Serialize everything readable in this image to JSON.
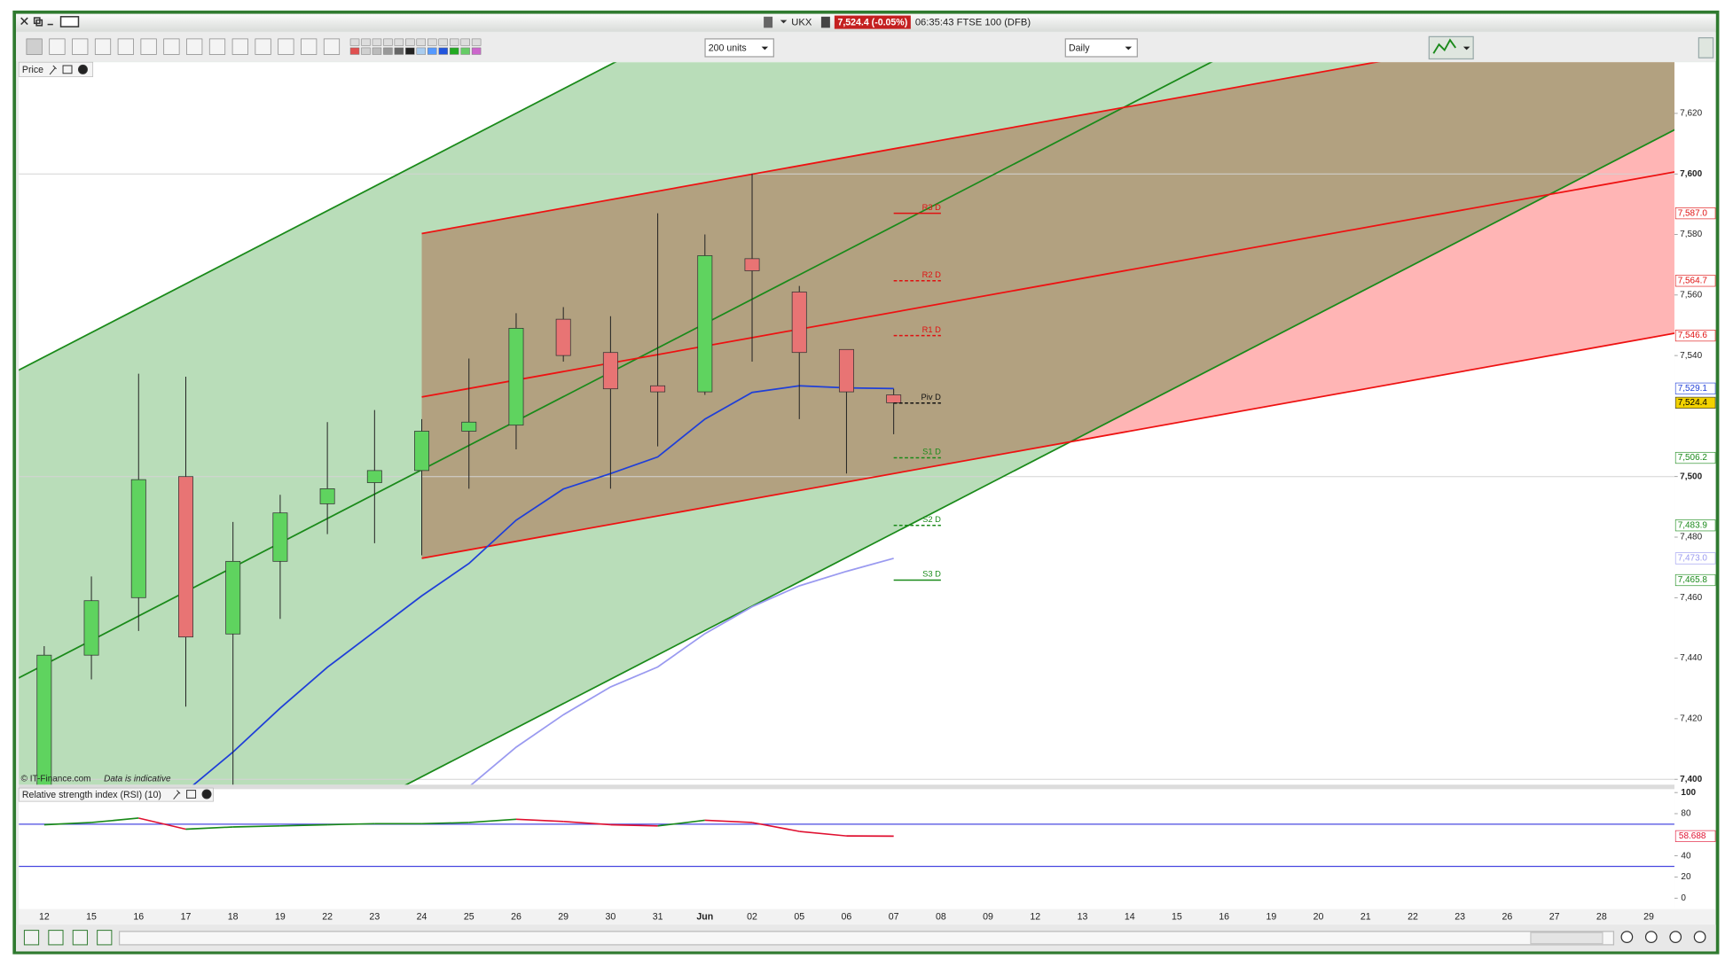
{
  "window": {
    "title": "UKX",
    "price": "7,524.4 (-0.05%)",
    "status": "06:35:43 FTSE 100 (DFB)"
  },
  "toolbar": {
    "size": "200 units",
    "interval": "Daily"
  },
  "chart_data": [
    {
      "type": "candlestick",
      "title": "Price",
      "footnote": "© IT-Finance.com",
      "note": "Data is indicative",
      "categories": [
        "12",
        "15",
        "16",
        "17",
        "18",
        "19",
        "22",
        "23",
        "24",
        "25",
        "26",
        "29",
        "30",
        "31",
        "Jun",
        "02",
        "05",
        "06",
        "07",
        "08",
        "09",
        "12",
        "13",
        "14",
        "15",
        "16",
        "19",
        "20",
        "21",
        "22",
        "23",
        "26",
        "27",
        "28",
        "29"
      ],
      "open": [
        7396,
        7441,
        7460,
        7500,
        7448,
        7472,
        7491,
        7498,
        7502,
        7515,
        7517,
        7552,
        7541,
        7530,
        7528,
        7572,
        7561,
        7542,
        7527,
        null,
        null,
        null,
        null,
        null,
        null,
        null,
        null,
        null,
        null,
        null,
        null,
        null,
        null,
        null,
        null
      ],
      "high": [
        7444,
        7467,
        7534,
        7533,
        7485,
        7494,
        7518,
        7522,
        7519,
        7539,
        7554,
        7556,
        7553,
        7587,
        7580,
        7600,
        7563,
        7542,
        7529,
        null,
        null,
        null,
        null,
        null,
        null,
        null,
        null,
        null,
        null,
        null,
        null,
        null,
        null,
        null,
        null
      ],
      "low": [
        7390,
        7433,
        7449,
        7424,
        7397,
        7453,
        7481,
        7478,
        7474,
        7496,
        7509,
        7538,
        7496,
        7510,
        7527,
        7538,
        7519,
        7501,
        7514,
        null,
        null,
        null,
        null,
        null,
        null,
        null,
        null,
        null,
        null,
        null,
        null,
        null,
        null,
        null,
        null
      ],
      "close": [
        7441,
        7459,
        7499,
        7447,
        7472,
        7488,
        7496,
        7502,
        7515,
        7518,
        7549,
        7540,
        7529,
        7528,
        7573,
        7568,
        7541,
        7528,
        7524.4,
        null,
        null,
        null,
        null,
        null,
        null,
        null,
        null,
        null,
        null,
        null,
        null,
        null,
        null,
        null,
        null
      ],
      "up_color": "#5fd35f",
      "down_color": "#e87474",
      "lines": [
        {
          "color": "#1f3fd8",
          "value_label": "7,529.1",
          "values": [
            null,
            null,
            null,
            7396,
            7409,
            7423.5,
            7437,
            7448.8,
            7460.6,
            7471.3,
            7485.6,
            7495.9,
            7501,
            7506.5,
            7519,
            7527.8,
            7530,
            7529.3,
            7529.1,
            null,
            null,
            null,
            null,
            null,
            null,
            null,
            null,
            null,
            null,
            null,
            null,
            null,
            null,
            null,
            null
          ]
        },
        {
          "color": "#9a9af0",
          "value_label": "7,473.0",
          "values": [
            null,
            null,
            null,
            null,
            null,
            null,
            null,
            null,
            null,
            7397.5,
            7410.6,
            7421.3,
            7430.5,
            7437.1,
            7448.1,
            7457,
            7463.9,
            7468.7,
            7473.0,
            null,
            null,
            null,
            null,
            null,
            null,
            null,
            null,
            null,
            null,
            null,
            null,
            null,
            null,
            null,
            null
          ]
        }
      ],
      "current": {
        "value": 7524.4,
        "value_label": "7,524.4",
        "color": "#f2d200"
      },
      "levels": [
        {
          "name": "R3 D",
          "value": 7587.0,
          "value_label": "7,587.0",
          "color": "#e01010",
          "dashed": false
        },
        {
          "name": "R2 D",
          "value": 7564.7,
          "value_label": "7,564.7",
          "color": "#e01010",
          "dashed": true
        },
        {
          "name": "R1 D",
          "value": 7546.6,
          "value_label": "7,546.6",
          "color": "#e01010",
          "dashed": true
        },
        {
          "name": "Piv D",
          "value": 7524.3,
          "color": "#111111",
          "dashed": true
        },
        {
          "name": "S1 D",
          "value": 7506.2,
          "value_label": "7,506.2",
          "color": "#1a8a1a",
          "dashed": true
        },
        {
          "name": "S2 D",
          "value": 7483.9,
          "value_label": "7,483.9",
          "color": "#1a8a1a",
          "dashed": true
        },
        {
          "name": "S3 D",
          "value": 7465.8,
          "value_label": "7,465.8",
          "color": "#1a8a1a",
          "dashed": false
        }
      ],
      "channels": [
        {
          "color": "#1a8a1a",
          "fill": "#b9ddb9",
          "upper": [
            [
              -0.6,
              7534.7
            ],
            [
              34.6,
              7818.1
            ]
          ],
          "middle": [
            [
              -0.6,
              7433.0
            ],
            [
              34.6,
              7716.4
            ]
          ],
          "lower": [
            [
              -0.6,
              7331.6
            ],
            [
              34.6,
              7615.0
            ]
          ]
        },
        {
          "color": "#ee1111",
          "fill": "#ffb5b5",
          "overlap_fill": "#b2a180",
          "upper": [
            [
              8,
              7580.3
            ],
            [
              34.6,
              7654.8
            ]
          ],
          "middle": [
            [
              8,
              7526.3
            ],
            [
              34.6,
              7600.8
            ]
          ],
          "lower": [
            [
              8,
              7473.0
            ],
            [
              34.6,
              7547.5
            ]
          ]
        }
      ],
      "ylim": [
        7398.2,
        7636.9
      ],
      "yticks": [
        {
          "value": 7400,
          "label": "7,400"
        },
        {
          "value": 7420,
          "label": "7,420"
        },
        {
          "value": 7440,
          "label": "7,440"
        },
        {
          "value": 7460,
          "label": "7,460"
        },
        {
          "value": 7480,
          "label": "7,480"
        },
        {
          "value": 7500,
          "label": "7,500"
        },
        {
          "value": 7540,
          "label": "7,540"
        },
        {
          "value": 7560,
          "label": "7,560"
        },
        {
          "value": 7580,
          "label": "7,580"
        },
        {
          "value": 7600,
          "label": "7,600"
        },
        {
          "value": 7620,
          "label": "7,620"
        }
      ]
    },
    {
      "type": "line",
      "title": "Relative strength index (RSI) (10)",
      "values": [
        69.5,
        71.6,
        75.8,
        65.3,
        67.4,
        68.4,
        69.5,
        70.5,
        70.5,
        71.6,
        74.7,
        72.6,
        69.5,
        68.4,
        73.7,
        71.6,
        63.2,
        58.9,
        58.688,
        null,
        null,
        null,
        null,
        null,
        null,
        null,
        null,
        null,
        null,
        null,
        null,
        null,
        null,
        null,
        null
      ],
      "value_label": "58.688",
      "up_color": "#1a8a1a",
      "down_color": "#e01030",
      "bands": [
        70,
        30
      ],
      "band_color": "#4848e0",
      "ylim": [
        -10.5,
        103.2
      ],
      "yticks": [
        0,
        20,
        40,
        80,
        100
      ]
    }
  ]
}
